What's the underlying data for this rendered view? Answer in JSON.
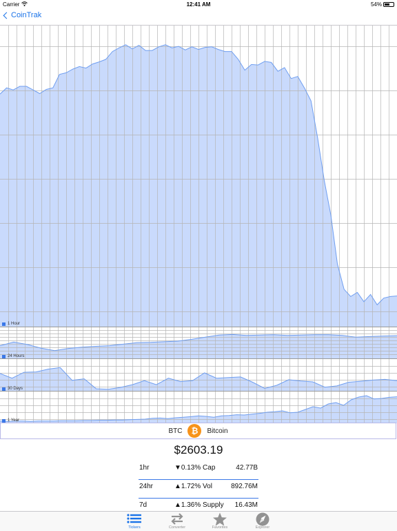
{
  "status_bar": {
    "carrier": "Carrier",
    "time": "12:41 AM",
    "battery": "54%",
    "battery_level": 0.54
  },
  "nav": {
    "back_label": "CoinTrak"
  },
  "charts": [
    {
      "label": "1 Hour"
    },
    {
      "label": "24 Hours"
    },
    {
      "label": "30 Days"
    },
    {
      "label": "1 Year"
    }
  ],
  "chart_data": [
    {
      "type": "area",
      "name": "1 Hour",
      "legend": "1 Hour",
      "values": [
        2508,
        2520,
        2516,
        2523,
        2523,
        2516,
        2509,
        2517,
        2520,
        2546,
        2549,
        2556,
        2561,
        2558,
        2566,
        2570,
        2575,
        2590,
        2597,
        2603,
        2595,
        2602,
        2592,
        2592,
        2599,
        2603,
        2597,
        2600,
        2593,
        2599,
        2594,
        2598,
        2599,
        2594,
        2590,
        2590,
        2575,
        2554,
        2565,
        2564,
        2571,
        2569,
        2552,
        2559,
        2538,
        2542,
        2520,
        2495,
        2424,
        2342,
        2275,
        2180,
        2132,
        2118,
        2126,
        2108,
        2122,
        2102,
        2115,
        2118,
        2119
      ],
      "ylim": [
        2060,
        2640
      ]
    },
    {
      "type": "area",
      "name": "24 Hours",
      "legend": "24 Hours",
      "values": [
        44,
        56,
        48,
        36,
        28,
        35,
        39,
        42,
        44,
        49,
        54,
        55,
        57,
        59,
        65,
        72,
        79,
        81,
        78,
        79,
        80,
        78,
        79,
        80,
        80,
        78,
        72,
        74,
        76,
        77
      ],
      "ylim": [
        0,
        100
      ]
    },
    {
      "type": "area",
      "name": "30 Days",
      "legend": "30 Days",
      "values": [
        58,
        43,
        62,
        63,
        72,
        77,
        36,
        41,
        9,
        7,
        13,
        22,
        35,
        22,
        43,
        32,
        35,
        60,
        43,
        45,
        47,
        30,
        10,
        20,
        38,
        34,
        31,
        14,
        18,
        30,
        33,
        37,
        39,
        35
      ],
      "ylim": [
        0,
        100
      ]
    },
    {
      "type": "area",
      "name": "1 Year",
      "legend": "1 Year",
      "values": [
        8,
        7,
        8,
        8,
        7,
        8,
        8,
        8,
        9,
        9,
        9,
        10,
        10,
        11,
        11,
        12,
        12,
        13,
        14,
        15,
        18,
        19,
        17,
        20,
        22,
        24,
        27,
        25,
        22,
        27,
        28,
        31,
        30,
        33,
        36,
        40,
        42,
        45,
        38,
        40,
        50,
        60,
        55,
        70,
        75,
        65,
        85,
        95,
        100,
        88,
        90,
        94,
        96
      ],
      "ylim": [
        0,
        110
      ]
    }
  ],
  "coin": {
    "symbol": "BTC",
    "name": "Bitcoin",
    "logo_glyph": "₿",
    "logo_color": "#f7931a"
  },
  "price": "$2603.19",
  "stats": [
    {
      "period": "1hr",
      "change": "▼0.13% Cap",
      "value": "42.77B"
    },
    {
      "period": "24hr",
      "change": "▲1.72% Vol",
      "value": "892.76M"
    },
    {
      "period": "7d",
      "change": "▲1.36% Supply",
      "value": "16.43M"
    }
  ],
  "tabs": [
    {
      "label": "Tickers",
      "icon": "list-icon",
      "active": true
    },
    {
      "label": "Converter",
      "icon": "arrows-icon",
      "active": false
    },
    {
      "label": "Favorites",
      "icon": "star-icon",
      "active": false
    },
    {
      "label": "Explorer",
      "icon": "compass-icon",
      "active": false
    }
  ],
  "colors": {
    "accent": "#1a73e8",
    "chart_fill": "#bfd4fb",
    "chart_line": "#6f9ef0",
    "legend": "#3b78e7"
  }
}
